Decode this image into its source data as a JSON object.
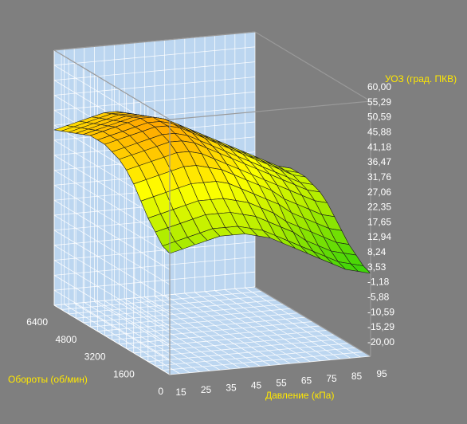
{
  "chart_data": {
    "type": "surface",
    "xlabel": "Давление (кПа)",
    "ylabel": "Обороты (об/мин)",
    "zlabel": "УОЗ (град. ПКВ)",
    "x_ticks": [
      "15",
      "25",
      "35",
      "45",
      "55",
      "65",
      "75",
      "85",
      "95"
    ],
    "y_ticks": [
      "0",
      "1600",
      "3200",
      "4800",
      "6400"
    ],
    "z_ticks": [
      "60,00",
      "55,29",
      "50,59",
      "45,88",
      "41,18",
      "36,47",
      "31,76",
      "27,06",
      "22,35",
      "17,65",
      "12,94",
      "8,24",
      "3,53",
      "-1,18",
      "-5,88",
      "-10,59",
      "-15,29",
      "-20,00"
    ],
    "zlim": [
      -20,
      60
    ],
    "x": [
      15,
      20,
      25,
      30,
      35,
      40,
      45,
      50,
      55,
      60,
      65,
      70,
      75,
      80,
      85,
      90,
      95
    ],
    "y": [
      0,
      400,
      800,
      1200,
      1600,
      2000,
      2400,
      2800,
      3200,
      3600,
      4000,
      4400,
      4800,
      5200,
      5600,
      6000,
      6400
    ],
    "z": [
      [
        18,
        19,
        20,
        21,
        22,
        22,
        22,
        21,
        20,
        18,
        16,
        14,
        12,
        10,
        8,
        7,
        6
      ],
      [
        19,
        20,
        21,
        22,
        23,
        23,
        23,
        22,
        21,
        19,
        17,
        15,
        13,
        11,
        9,
        8,
        7
      ],
      [
        22,
        23,
        24,
        25,
        26,
        26,
        26,
        25,
        24,
        22,
        20,
        18,
        15,
        13,
        11,
        10,
        9
      ],
      [
        25,
        26,
        27,
        28,
        29,
        29,
        29,
        28,
        27,
        25,
        23,
        20,
        18,
        16,
        14,
        12,
        11
      ],
      [
        29,
        30,
        31,
        32,
        33,
        33,
        33,
        32,
        30,
        28,
        26,
        24,
        21,
        19,
        17,
        15,
        14
      ],
      [
        33,
        34,
        35,
        36,
        37,
        37,
        36,
        35,
        33,
        31,
        29,
        27,
        24,
        22,
        20,
        18,
        17
      ],
      [
        36,
        37,
        38,
        39,
        40,
        40,
        39,
        37,
        35,
        33,
        31,
        29,
        27,
        25,
        23,
        21,
        20
      ],
      [
        38,
        39,
        40,
        41,
        42,
        42,
        41,
        39,
        37,
        35,
        33,
        31,
        29,
        27,
        25,
        23,
        22
      ],
      [
        39,
        40,
        41,
        42,
        43,
        43,
        42,
        40,
        38,
        36,
        34,
        32,
        30,
        28,
        26,
        24,
        23
      ],
      [
        40,
        41,
        42,
        43,
        44,
        44,
        43,
        41,
        39,
        37,
        35,
        33,
        31,
        29,
        27,
        25,
        24
      ],
      [
        40,
        41,
        42,
        43,
        44,
        44,
        43,
        41,
        39,
        37,
        35,
        33,
        31,
        29,
        27,
        25,
        24
      ],
      [
        40,
        41,
        42,
        43,
        44,
        44,
        43,
        41,
        39,
        37,
        35,
        33,
        31,
        29,
        27,
        25,
        24
      ],
      [
        39,
        40,
        41,
        42,
        43,
        43,
        42,
        40,
        38,
        36,
        34,
        32,
        30,
        28,
        26,
        24,
        23
      ],
      [
        38,
        39,
        40,
        41,
        42,
        42,
        41,
        39,
        37,
        35,
        33,
        31,
        29,
        27,
        25,
        23,
        22
      ],
      [
        37,
        38,
        39,
        40,
        41,
        41,
        40,
        38,
        36,
        34,
        32,
        30,
        28,
        26,
        24,
        22,
        21
      ],
      [
        36,
        37,
        38,
        39,
        40,
        40,
        39,
        37,
        35,
        33,
        31,
        29,
        27,
        25,
        23,
        21,
        20
      ],
      [
        35,
        36,
        37,
        38,
        39,
        39,
        38,
        36,
        34,
        32,
        30,
        28,
        26,
        24,
        22,
        20,
        19
      ]
    ],
    "colors": {
      "background": "#7f7f7f",
      "box_walls": "#bcd6f0",
      "grid_lines": "#ffffff",
      "box_edges": "#9a9a9a",
      "mesh_lines": "#1a1a1a",
      "axis_title": "#ffe800",
      "tick_label": "#ffffff"
    },
    "colormap": [
      "#2ed10a",
      "#9ee800",
      "#ffff00",
      "#ffa200"
    ]
  }
}
